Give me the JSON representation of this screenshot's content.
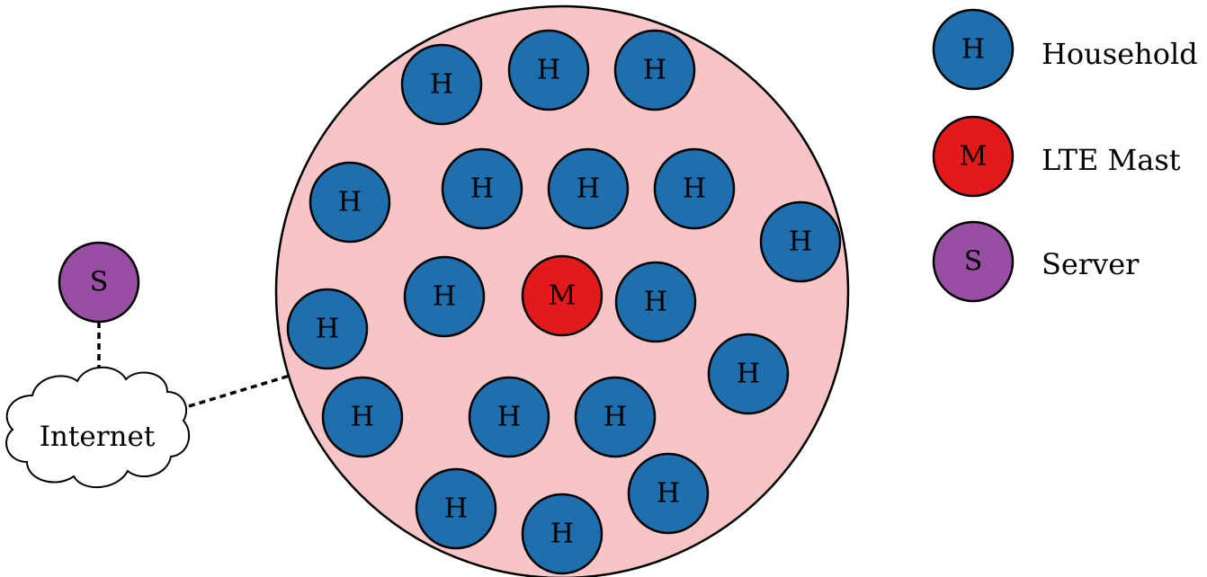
{
  "colors": {
    "household": "#1f6fae",
    "mast": "#e31a1c",
    "server": "#984ea3",
    "coverage_area": "#f7c5c6",
    "cloud_fill": "#ffffff"
  },
  "node_labels": {
    "household": "H",
    "mast": "M",
    "server": "S"
  },
  "cloud": {
    "label": "Internet"
  },
  "legend": {
    "items": [
      {
        "symbol": "H",
        "label": "Household",
        "kind": "household"
      },
      {
        "symbol": "M",
        "label": "LTE Mast",
        "kind": "mast"
      },
      {
        "symbol": "S",
        "label": "Server",
        "kind": "server"
      }
    ]
  }
}
